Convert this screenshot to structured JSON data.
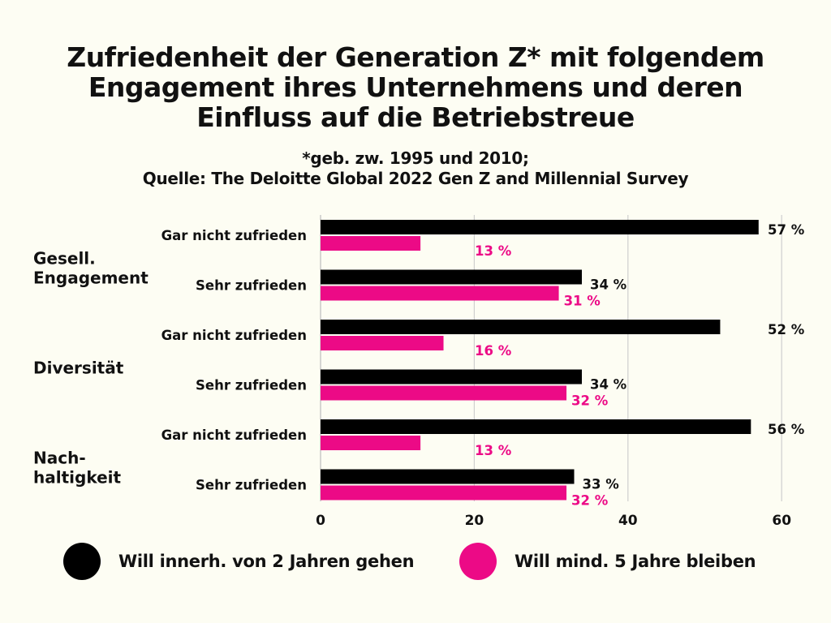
{
  "chart_data": {
    "type": "bar",
    "orientation": "horizontal",
    "title": "Zufriedenheit der Generation Z* mit folgendem Engagement ihres Unternehmens und deren Einfluss auf die Betriebstreue",
    "subtitle_lines": [
      "*geb. zw. 1995 und 2010;",
      "Quelle: The Deloitte Global 2022 Gen Z and Millennial Survey"
    ],
    "xlim": [
      0,
      60
    ],
    "x_ticks": [
      "0",
      "20",
      "40",
      "60"
    ],
    "grid": true,
    "legend_position": "bottom",
    "groups": [
      {
        "label": "Gesell. Engagement",
        "label_lines": [
          "Gesell.",
          "Engagement"
        ],
        "categories": [
          {
            "label": "Gar nicht zufrieden",
            "values": [
              57,
              13
            ],
            "value_labels": [
              "57 %",
              "13 %"
            ]
          },
          {
            "label": "Sehr zufrieden",
            "values": [
              34,
              31
            ],
            "value_labels": [
              "34 %",
              "31 %"
            ]
          }
        ]
      },
      {
        "label": "Diversität",
        "label_lines": [
          "Diversität"
        ],
        "categories": [
          {
            "label": "Gar nicht zufrieden",
            "values": [
              52,
              16
            ],
            "value_labels": [
              "52 %",
              "16 %"
            ]
          },
          {
            "label": "Sehr zufrieden",
            "values": [
              34,
              32
            ],
            "value_labels": [
              "34 %",
              "32 %"
            ]
          }
        ]
      },
      {
        "label": "Nach-haltigkeit",
        "label_lines": [
          "Nach-",
          "haltigkeit"
        ],
        "categories": [
          {
            "label": "Gar nicht zufrieden",
            "values": [
              56,
              13
            ],
            "value_labels": [
              "56 %",
              "13 %"
            ]
          },
          {
            "label": "Sehr zufrieden",
            "values": [
              33,
              32
            ],
            "value_labels": [
              "33 %",
              "32 %"
            ]
          }
        ]
      }
    ],
    "series": [
      {
        "name": "Will innerh. von 2 Jahren gehen",
        "color": "#000000"
      },
      {
        "name": "Will mind. 5 Jahre bleiben",
        "color": "#ec0a86"
      }
    ]
  }
}
